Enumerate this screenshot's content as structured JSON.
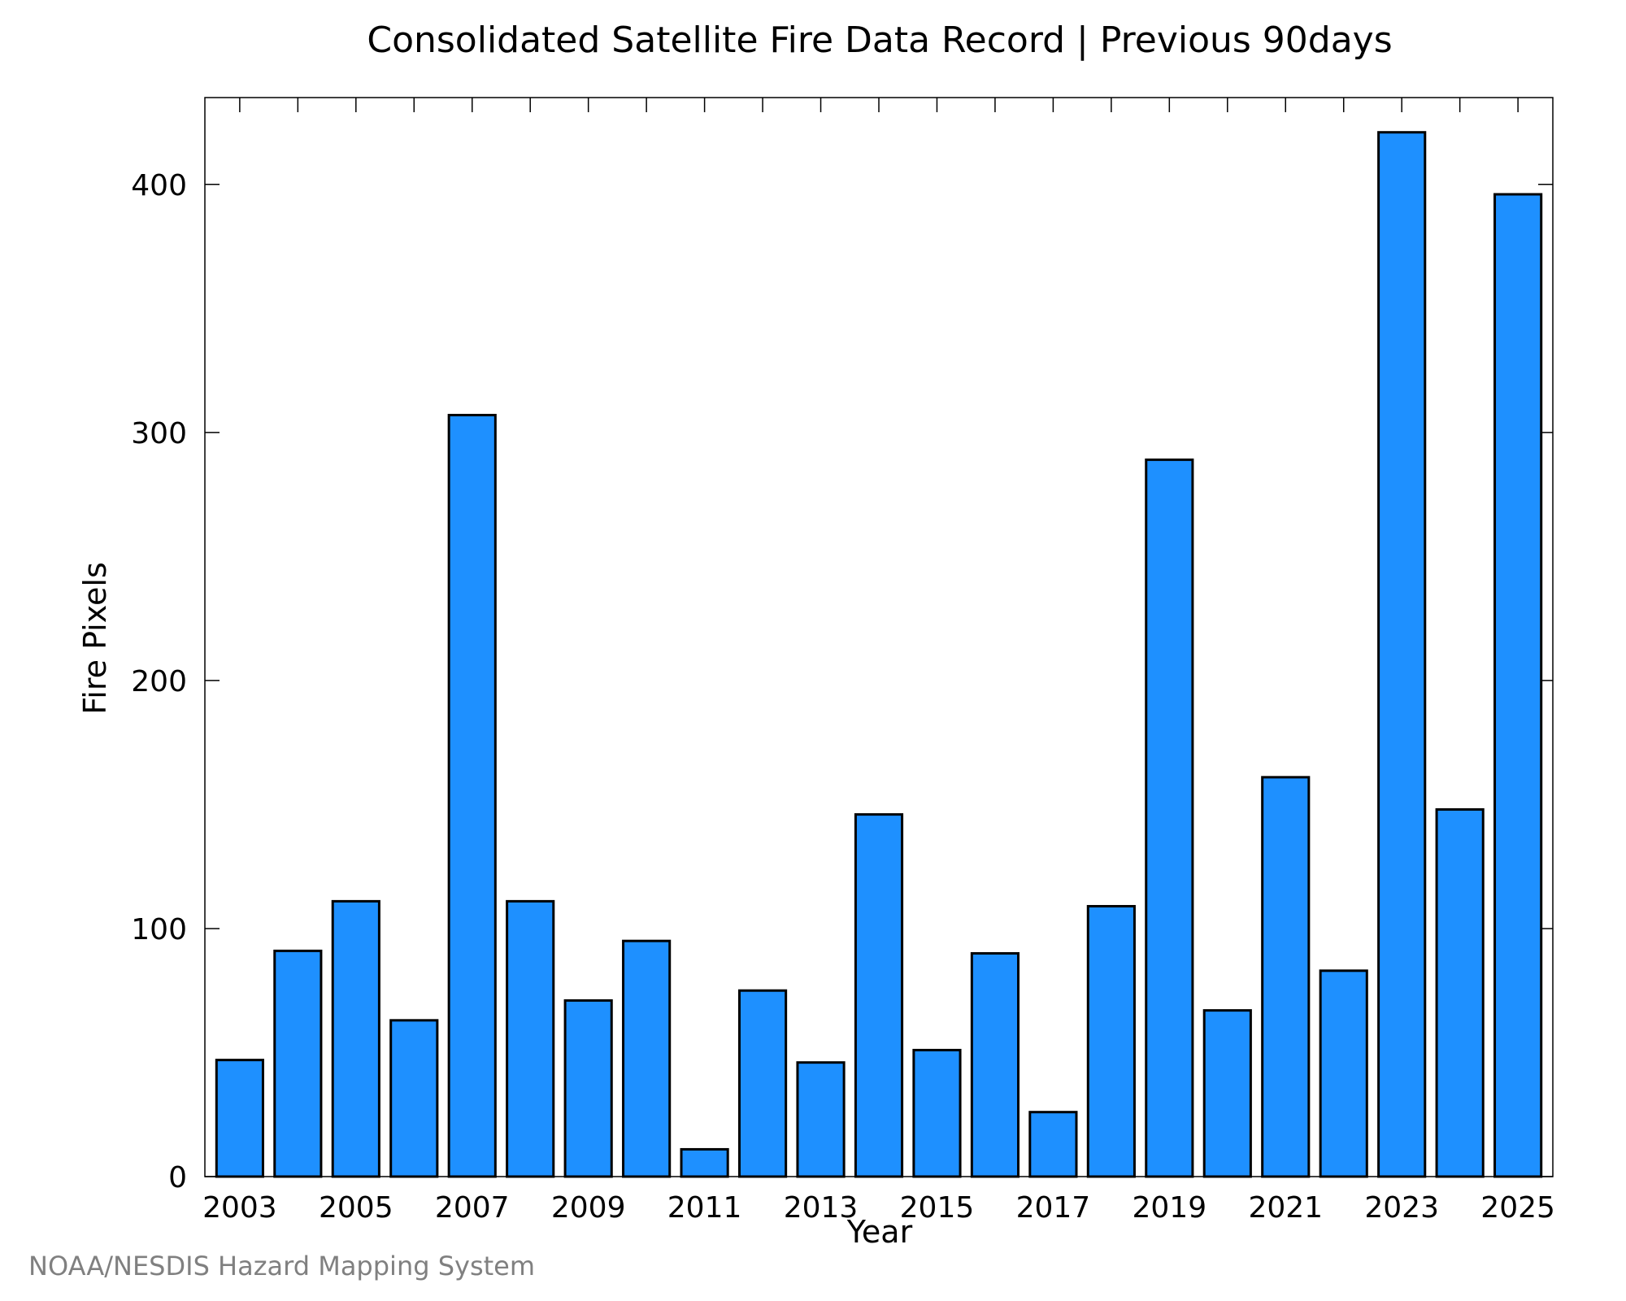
{
  "chart_data": {
    "type": "bar",
    "title": "Consolidated Satellite Fire Data Record | Previous 90days",
    "xlabel": "Year",
    "ylabel": "Fire Pixels",
    "categories": [
      "2003",
      "2004",
      "2005",
      "2006",
      "2007",
      "2008",
      "2009",
      "2010",
      "2011",
      "2012",
      "2013",
      "2014",
      "2015",
      "2016",
      "2017",
      "2018",
      "2019",
      "2020",
      "2021",
      "2022",
      "2023",
      "2024",
      "2025"
    ],
    "x_tick_labels": [
      "2003",
      "2005",
      "2007",
      "2009",
      "2011",
      "2013",
      "2015",
      "2017",
      "2019",
      "2021",
      "2023",
      "2025"
    ],
    "values": [
      47,
      91,
      111,
      63,
      307,
      111,
      71,
      95,
      11,
      75,
      46,
      146,
      51,
      90,
      26,
      109,
      289,
      67,
      161,
      83,
      421,
      148,
      396
    ],
    "ylim": [
      0,
      435
    ],
    "y_ticks": [
      0,
      100,
      200,
      300,
      400
    ],
    "bar_color": "#1e90ff",
    "grid": false,
    "legend": "none"
  },
  "footer": {
    "credit": "NOAA/NESDIS Hazard Mapping System"
  }
}
